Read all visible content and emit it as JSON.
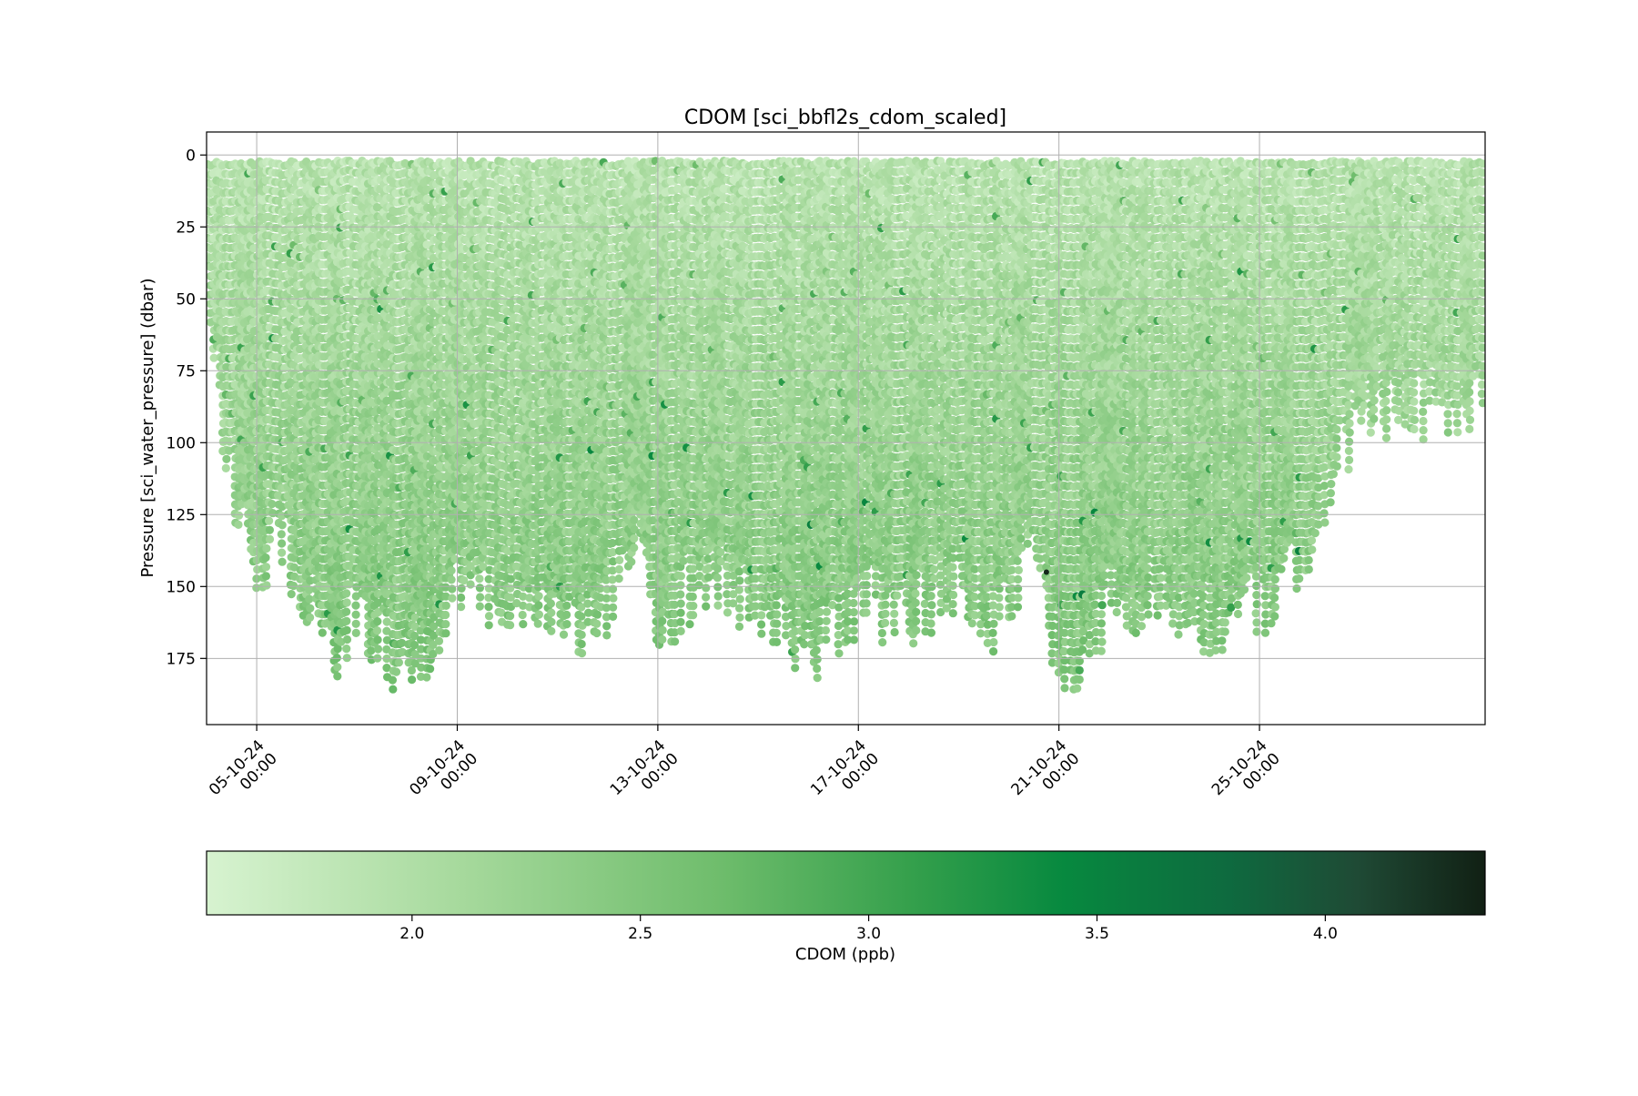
{
  "chart_data": {
    "type": "scatter",
    "title": "CDOM [sci_bbfl2s_cdom_scaled]",
    "ylabel": "Pressure [sci_water_pressure] (dbar)",
    "xlabel": "",
    "x_range": [
      "2024-10-04T00:00",
      "2024-10-29T12:00"
    ],
    "y_range": [
      198,
      -8
    ],
    "y_inverted": true,
    "y_ticks": [
      0,
      25,
      50,
      75,
      100,
      125,
      150,
      175
    ],
    "x_ticks": [
      {
        "value": "2024-10-05T00:00",
        "label_date": "05-10-24",
        "label_time": "00:00"
      },
      {
        "value": "2024-10-09T00:00",
        "label_date": "09-10-24",
        "label_time": "00:00"
      },
      {
        "value": "2024-10-13T00:00",
        "label_date": "13-10-24",
        "label_time": "00:00"
      },
      {
        "value": "2024-10-17T00:00",
        "label_date": "17-10-24",
        "label_time": "00:00"
      },
      {
        "value": "2024-10-21T00:00",
        "label_date": "21-10-24",
        "label_time": "00:00"
      },
      {
        "value": "2024-10-25T00:00",
        "label_date": "25-10-24",
        "label_time": "00:00"
      }
    ],
    "grid": true,
    "colormap": "Greens",
    "colorbar": {
      "label": "CDOM (ppb)",
      "range": [
        1.55,
        4.35
      ],
      "ticks": [
        2.0,
        2.5,
        3.0,
        3.5,
        4.0
      ],
      "tick_labels": [
        "2.0",
        "2.5",
        "3.0",
        "3.5",
        "4.0"
      ],
      "orientation": "horizontal",
      "placement": "bottom"
    },
    "profile_max_depth": [
      {
        "x": "2024-10-04T01:00",
        "depth": 60
      },
      {
        "x": "2024-10-04T07:00",
        "depth": 103
      },
      {
        "x": "2024-10-04T22:00",
        "depth": 162
      },
      {
        "x": "2024-10-05T10:00",
        "depth": 140
      },
      {
        "x": "2024-10-06T00:00",
        "depth": 168
      },
      {
        "x": "2024-10-06T12:00",
        "depth": 186
      },
      {
        "x": "2024-10-07T00:00",
        "depth": 170
      },
      {
        "x": "2024-10-07T18:00",
        "depth": 188
      },
      {
        "x": "2024-10-08T12:00",
        "depth": 182
      },
      {
        "x": "2024-10-09T00:00",
        "depth": 160
      },
      {
        "x": "2024-10-10T00:00",
        "depth": 170
      },
      {
        "x": "2024-10-11T00:00",
        "depth": 165
      },
      {
        "x": "2024-10-11T18:00",
        "depth": 180
      },
      {
        "x": "2024-10-12T12:00",
        "depth": 140
      },
      {
        "x": "2024-10-13T00:00",
        "depth": 188
      },
      {
        "x": "2024-10-13T12:00",
        "depth": 165
      },
      {
        "x": "2024-10-14T00:00",
        "depth": 160
      },
      {
        "x": "2024-10-15T00:00",
        "depth": 170
      },
      {
        "x": "2024-10-16T00:00",
        "depth": 186
      },
      {
        "x": "2024-10-17T00:00",
        "depth": 168
      },
      {
        "x": "2024-10-18T00:00",
        "depth": 172
      },
      {
        "x": "2024-10-19T00:00",
        "depth": 160
      },
      {
        "x": "2024-10-19T18:00",
        "depth": 175
      },
      {
        "x": "2024-10-20T12:00",
        "depth": 148
      },
      {
        "x": "2024-10-21T00:00",
        "depth": 188
      },
      {
        "x": "2024-10-21T12:00",
        "depth": 186
      },
      {
        "x": "2024-10-22T00:00",
        "depth": 170
      },
      {
        "x": "2024-10-23T00:00",
        "depth": 165
      },
      {
        "x": "2024-10-24T00:00",
        "depth": 175
      },
      {
        "x": "2024-10-25T00:00",
        "depth": 170
      },
      {
        "x": "2024-10-25T18:00",
        "depth": 155
      },
      {
        "x": "2024-10-26T12:00",
        "depth": 125
      },
      {
        "x": "2024-10-27T00:00",
        "depth": 100
      },
      {
        "x": "2024-10-28T00:00",
        "depth": 100
      },
      {
        "x": "2024-10-29T12:00",
        "depth": 100
      }
    ],
    "typical_cdom_ppb": {
      "surface": 1.9,
      "mid": 2.2,
      "deep": 2.5,
      "max_observed": 4.3
    }
  }
}
